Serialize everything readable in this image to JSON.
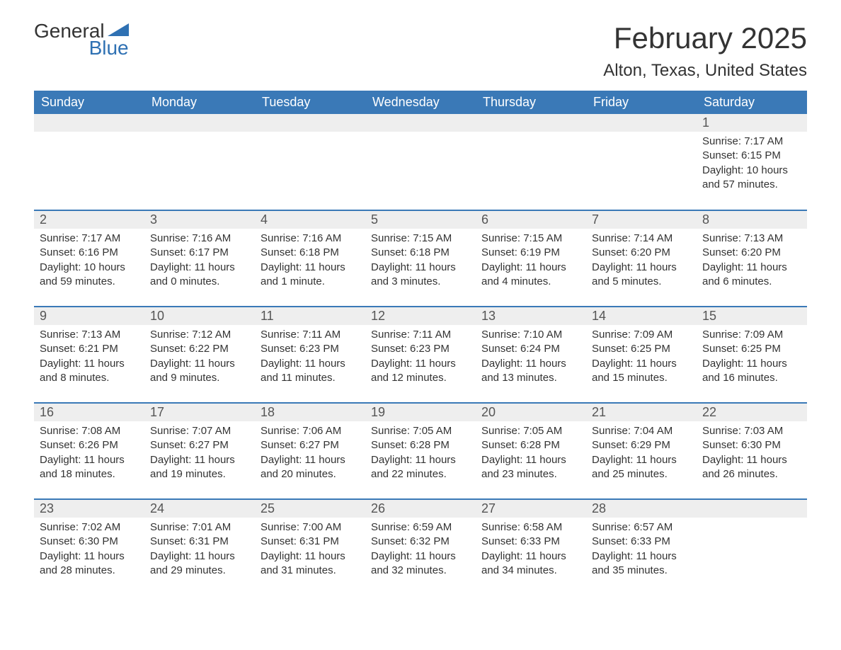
{
  "logo": {
    "word1": "General",
    "word2": "Blue"
  },
  "title": "February 2025",
  "location": "Alton, Texas, United States",
  "colors": {
    "header_bg": "#3a79b7",
    "header_fg": "#ffffff",
    "row_border": "#3a79b7",
    "daynum_bg": "#eeeeee",
    "text": "#333333",
    "logo_accent": "#2f71b3"
  },
  "typography": {
    "title_fontsize": 42,
    "location_fontsize": 24,
    "dayheader_fontsize": 18,
    "daynum_fontsize": 18,
    "body_fontsize": 15
  },
  "day_headers": [
    "Sunday",
    "Monday",
    "Tuesday",
    "Wednesday",
    "Thursday",
    "Friday",
    "Saturday"
  ],
  "weeks": [
    [
      null,
      null,
      null,
      null,
      null,
      null,
      {
        "n": "1",
        "sunrise": "Sunrise: 7:17 AM",
        "sunset": "Sunset: 6:15 PM",
        "daylight": "Daylight: 10 hours and 57 minutes."
      }
    ],
    [
      {
        "n": "2",
        "sunrise": "Sunrise: 7:17 AM",
        "sunset": "Sunset: 6:16 PM",
        "daylight": "Daylight: 10 hours and 59 minutes."
      },
      {
        "n": "3",
        "sunrise": "Sunrise: 7:16 AM",
        "sunset": "Sunset: 6:17 PM",
        "daylight": "Daylight: 11 hours and 0 minutes."
      },
      {
        "n": "4",
        "sunrise": "Sunrise: 7:16 AM",
        "sunset": "Sunset: 6:18 PM",
        "daylight": "Daylight: 11 hours and 1 minute."
      },
      {
        "n": "5",
        "sunrise": "Sunrise: 7:15 AM",
        "sunset": "Sunset: 6:18 PM",
        "daylight": "Daylight: 11 hours and 3 minutes."
      },
      {
        "n": "6",
        "sunrise": "Sunrise: 7:15 AM",
        "sunset": "Sunset: 6:19 PM",
        "daylight": "Daylight: 11 hours and 4 minutes."
      },
      {
        "n": "7",
        "sunrise": "Sunrise: 7:14 AM",
        "sunset": "Sunset: 6:20 PM",
        "daylight": "Daylight: 11 hours and 5 minutes."
      },
      {
        "n": "8",
        "sunrise": "Sunrise: 7:13 AM",
        "sunset": "Sunset: 6:20 PM",
        "daylight": "Daylight: 11 hours and 6 minutes."
      }
    ],
    [
      {
        "n": "9",
        "sunrise": "Sunrise: 7:13 AM",
        "sunset": "Sunset: 6:21 PM",
        "daylight": "Daylight: 11 hours and 8 minutes."
      },
      {
        "n": "10",
        "sunrise": "Sunrise: 7:12 AM",
        "sunset": "Sunset: 6:22 PM",
        "daylight": "Daylight: 11 hours and 9 minutes."
      },
      {
        "n": "11",
        "sunrise": "Sunrise: 7:11 AM",
        "sunset": "Sunset: 6:23 PM",
        "daylight": "Daylight: 11 hours and 11 minutes."
      },
      {
        "n": "12",
        "sunrise": "Sunrise: 7:11 AM",
        "sunset": "Sunset: 6:23 PM",
        "daylight": "Daylight: 11 hours and 12 minutes."
      },
      {
        "n": "13",
        "sunrise": "Sunrise: 7:10 AM",
        "sunset": "Sunset: 6:24 PM",
        "daylight": "Daylight: 11 hours and 13 minutes."
      },
      {
        "n": "14",
        "sunrise": "Sunrise: 7:09 AM",
        "sunset": "Sunset: 6:25 PM",
        "daylight": "Daylight: 11 hours and 15 minutes."
      },
      {
        "n": "15",
        "sunrise": "Sunrise: 7:09 AM",
        "sunset": "Sunset: 6:25 PM",
        "daylight": "Daylight: 11 hours and 16 minutes."
      }
    ],
    [
      {
        "n": "16",
        "sunrise": "Sunrise: 7:08 AM",
        "sunset": "Sunset: 6:26 PM",
        "daylight": "Daylight: 11 hours and 18 minutes."
      },
      {
        "n": "17",
        "sunrise": "Sunrise: 7:07 AM",
        "sunset": "Sunset: 6:27 PM",
        "daylight": "Daylight: 11 hours and 19 minutes."
      },
      {
        "n": "18",
        "sunrise": "Sunrise: 7:06 AM",
        "sunset": "Sunset: 6:27 PM",
        "daylight": "Daylight: 11 hours and 20 minutes."
      },
      {
        "n": "19",
        "sunrise": "Sunrise: 7:05 AM",
        "sunset": "Sunset: 6:28 PM",
        "daylight": "Daylight: 11 hours and 22 minutes."
      },
      {
        "n": "20",
        "sunrise": "Sunrise: 7:05 AM",
        "sunset": "Sunset: 6:28 PM",
        "daylight": "Daylight: 11 hours and 23 minutes."
      },
      {
        "n": "21",
        "sunrise": "Sunrise: 7:04 AM",
        "sunset": "Sunset: 6:29 PM",
        "daylight": "Daylight: 11 hours and 25 minutes."
      },
      {
        "n": "22",
        "sunrise": "Sunrise: 7:03 AM",
        "sunset": "Sunset: 6:30 PM",
        "daylight": "Daylight: 11 hours and 26 minutes."
      }
    ],
    [
      {
        "n": "23",
        "sunrise": "Sunrise: 7:02 AM",
        "sunset": "Sunset: 6:30 PM",
        "daylight": "Daylight: 11 hours and 28 minutes."
      },
      {
        "n": "24",
        "sunrise": "Sunrise: 7:01 AM",
        "sunset": "Sunset: 6:31 PM",
        "daylight": "Daylight: 11 hours and 29 minutes."
      },
      {
        "n": "25",
        "sunrise": "Sunrise: 7:00 AM",
        "sunset": "Sunset: 6:31 PM",
        "daylight": "Daylight: 11 hours and 31 minutes."
      },
      {
        "n": "26",
        "sunrise": "Sunrise: 6:59 AM",
        "sunset": "Sunset: 6:32 PM",
        "daylight": "Daylight: 11 hours and 32 minutes."
      },
      {
        "n": "27",
        "sunrise": "Sunrise: 6:58 AM",
        "sunset": "Sunset: 6:33 PM",
        "daylight": "Daylight: 11 hours and 34 minutes."
      },
      {
        "n": "28",
        "sunrise": "Sunrise: 6:57 AM",
        "sunset": "Sunset: 6:33 PM",
        "daylight": "Daylight: 11 hours and 35 minutes."
      },
      null
    ]
  ]
}
